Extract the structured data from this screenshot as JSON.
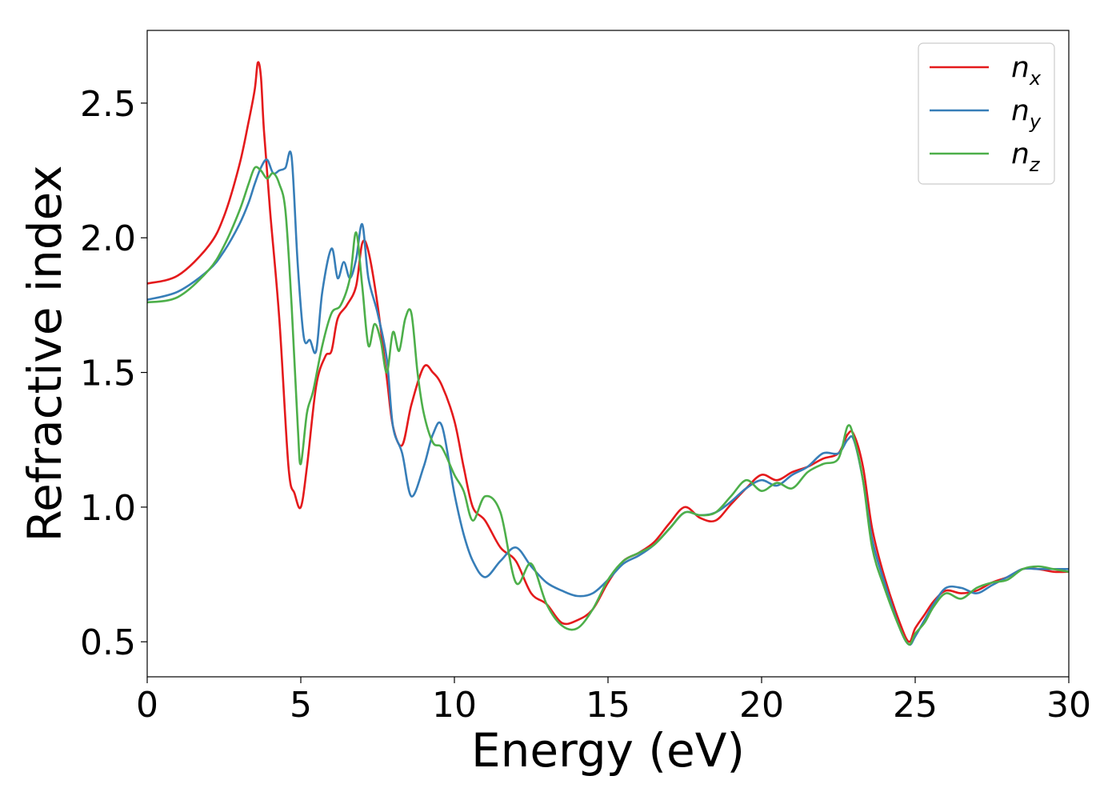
{
  "chart_data": {
    "type": "line",
    "xlabel": "Energy (eV)",
    "ylabel": "Refractive index",
    "xlim": [
      0,
      30
    ],
    "ylim": [
      0.37,
      2.77
    ],
    "xticks": [
      0,
      5,
      10,
      15,
      20,
      25,
      30
    ],
    "xtick_labels": [
      "0",
      "5",
      "10",
      "15",
      "20",
      "25",
      "30"
    ],
    "yticks": [
      0.5,
      1.0,
      1.5,
      2.0,
      2.5
    ],
    "ytick_labels": [
      "0.5",
      "1.0",
      "1.5",
      "2.0",
      "2.5"
    ],
    "grid": false,
    "legend_position": "top-right",
    "series": [
      {
        "name": "n_x",
        "label_main": "n",
        "label_sub": "x",
        "color": "#e41a1c",
        "x": [
          0,
          1,
          2,
          2.5,
          3,
          3.3,
          3.5,
          3.6,
          3.7,
          3.8,
          4.0,
          4.3,
          4.6,
          4.8,
          5.0,
          5.2,
          5.5,
          5.8,
          6.0,
          6.2,
          6.5,
          6.8,
          7.0,
          7.2,
          7.5,
          7.8,
          8.0,
          8.3,
          8.6,
          9.0,
          9.3,
          9.6,
          10.0,
          10.3,
          10.6,
          11.0,
          11.5,
          12.0,
          12.5,
          13.0,
          13.5,
          14.0,
          14.5,
          15.0,
          15.5,
          16.0,
          16.5,
          17.0,
          17.5,
          18.0,
          18.5,
          19.0,
          19.5,
          20.0,
          20.5,
          21.0,
          21.5,
          22.0,
          22.5,
          22.8,
          23.0,
          23.3,
          23.6,
          24.0,
          24.5,
          24.8,
          25.0,
          25.3,
          25.6,
          26.0,
          26.5,
          27.0,
          27.5,
          28.0,
          28.5,
          29.0,
          29.5,
          30.0
        ],
        "y": [
          1.83,
          1.86,
          1.97,
          2.08,
          2.27,
          2.43,
          2.55,
          2.65,
          2.6,
          2.4,
          2.1,
          1.7,
          1.15,
          1.05,
          1.0,
          1.15,
          1.45,
          1.56,
          1.58,
          1.7,
          1.75,
          1.82,
          1.98,
          1.95,
          1.75,
          1.48,
          1.3,
          1.23,
          1.38,
          1.52,
          1.5,
          1.45,
          1.32,
          1.15,
          1.0,
          0.95,
          0.85,
          0.8,
          0.68,
          0.64,
          0.57,
          0.58,
          0.62,
          0.72,
          0.8,
          0.83,
          0.87,
          0.94,
          1.0,
          0.96,
          0.95,
          1.01,
          1.07,
          1.12,
          1.1,
          1.13,
          1.15,
          1.18,
          1.2,
          1.27,
          1.27,
          1.15,
          0.92,
          0.74,
          0.57,
          0.5,
          0.55,
          0.6,
          0.65,
          0.69,
          0.68,
          0.69,
          0.72,
          0.74,
          0.77,
          0.77,
          0.76,
          0.76
        ]
      },
      {
        "name": "n_y",
        "label_main": "n",
        "label_sub": "y",
        "color": "#377eb8",
        "x": [
          0,
          1,
          2,
          2.5,
          3,
          3.3,
          3.5,
          3.7,
          3.9,
          4.1,
          4.3,
          4.5,
          4.7,
          4.9,
          5.1,
          5.3,
          5.5,
          5.7,
          6.0,
          6.2,
          6.4,
          6.6,
          6.8,
          7.0,
          7.2,
          7.5,
          7.8,
          8.0,
          8.3,
          8.6,
          9.0,
          9.3,
          9.6,
          10.0,
          10.3,
          10.6,
          11.0,
          11.5,
          12.0,
          12.5,
          13.0,
          13.5,
          14.0,
          14.5,
          15.0,
          15.5,
          16.0,
          16.5,
          17.0,
          17.5,
          18.0,
          18.5,
          19.0,
          19.5,
          20.0,
          20.5,
          21.0,
          21.5,
          22.0,
          22.5,
          22.8,
          23.0,
          23.3,
          23.6,
          24.0,
          24.5,
          24.8,
          25.0,
          25.3,
          25.6,
          26.0,
          26.5,
          27.0,
          27.5,
          28.0,
          28.5,
          29.0,
          29.5,
          30.0
        ],
        "y": [
          1.77,
          1.8,
          1.88,
          1.95,
          2.05,
          2.13,
          2.2,
          2.26,
          2.29,
          2.24,
          2.25,
          2.26,
          2.3,
          1.9,
          1.63,
          1.62,
          1.58,
          1.8,
          1.96,
          1.85,
          1.91,
          1.85,
          1.92,
          2.05,
          1.85,
          1.72,
          1.55,
          1.3,
          1.2,
          1.04,
          1.15,
          1.27,
          1.3,
          1.05,
          0.9,
          0.8,
          0.74,
          0.8,
          0.85,
          0.78,
          0.72,
          0.69,
          0.67,
          0.68,
          0.73,
          0.79,
          0.82,
          0.86,
          0.92,
          0.98,
          0.97,
          0.98,
          1.02,
          1.07,
          1.1,
          1.08,
          1.12,
          1.15,
          1.2,
          1.2,
          1.25,
          1.25,
          1.1,
          0.88,
          0.72,
          0.55,
          0.49,
          0.52,
          0.58,
          0.64,
          0.7,
          0.7,
          0.68,
          0.71,
          0.74,
          0.77,
          0.77,
          0.77,
          0.77
        ]
      },
      {
        "name": "n_z",
        "label_main": "n",
        "label_sub": "z",
        "color": "#4daf4a",
        "x": [
          0,
          1,
          2,
          2.5,
          3,
          3.3,
          3.5,
          3.7,
          3.9,
          4.1,
          4.3,
          4.5,
          4.7,
          4.9,
          5.0,
          5.2,
          5.4,
          5.7,
          6.0,
          6.3,
          6.6,
          6.8,
          7.0,
          7.2,
          7.4,
          7.6,
          7.8,
          8.0,
          8.2,
          8.4,
          8.6,
          8.8,
          9.0,
          9.3,
          9.6,
          10.0,
          10.3,
          10.6,
          11.0,
          11.5,
          12.0,
          12.5,
          13.0,
          13.5,
          14.0,
          14.5,
          15.0,
          15.5,
          16.0,
          16.5,
          17.0,
          17.5,
          18.0,
          18.5,
          19.0,
          19.5,
          20.0,
          20.5,
          21.0,
          21.5,
          22.0,
          22.5,
          22.8,
          23.0,
          23.3,
          23.6,
          24.0,
          24.5,
          24.8,
          25.0,
          25.3,
          25.6,
          26.0,
          26.5,
          27.0,
          27.5,
          28.0,
          28.5,
          29.0,
          29.5,
          30.0
        ],
        "y": [
          1.76,
          1.78,
          1.88,
          1.97,
          2.1,
          2.2,
          2.26,
          2.25,
          2.22,
          2.24,
          2.2,
          2.1,
          1.75,
          1.3,
          1.16,
          1.35,
          1.43,
          1.6,
          1.72,
          1.75,
          1.85,
          2.02,
          1.82,
          1.6,
          1.68,
          1.62,
          1.5,
          1.65,
          1.58,
          1.7,
          1.72,
          1.5,
          1.35,
          1.24,
          1.22,
          1.12,
          1.06,
          0.95,
          1.04,
          0.98,
          0.72,
          0.79,
          0.64,
          0.56,
          0.55,
          0.62,
          0.73,
          0.8,
          0.83,
          0.86,
          0.92,
          0.98,
          0.97,
          0.98,
          1.04,
          1.1,
          1.06,
          1.09,
          1.07,
          1.13,
          1.16,
          1.18,
          1.3,
          1.26,
          1.1,
          0.85,
          0.7,
          0.55,
          0.49,
          0.53,
          0.57,
          0.63,
          0.68,
          0.66,
          0.7,
          0.72,
          0.73,
          0.77,
          0.78,
          0.77,
          0.76
        ]
      }
    ]
  }
}
